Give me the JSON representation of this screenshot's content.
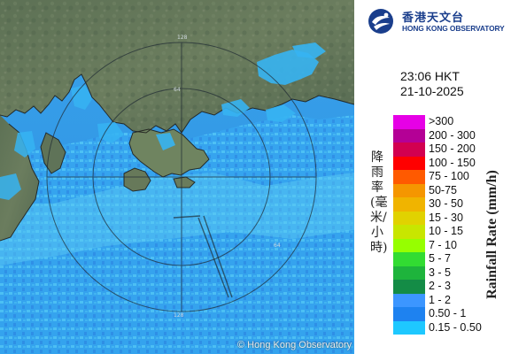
{
  "map": {
    "copyright": "© Hong Kong Observatory",
    "sea_color": "#1f8fe8",
    "land_color": "#62785a",
    "range_labels": [
      "64",
      "128",
      "64",
      "128"
    ]
  },
  "logo": {
    "name_zh": "香港天文台",
    "name_en": "HONG KONG OBSERVATORY",
    "icon": "hko-logo-icon",
    "brand_color": "#1a3e8c"
  },
  "timestamp": {
    "time": "23:06 HKT",
    "date": "21-10-2025"
  },
  "legend": {
    "title_zh": "降雨率(毫米/小時)",
    "title_en": "Rainfall Rate (mm/h)",
    "items": [
      {
        "label": ">300",
        "color": "#e600e6"
      },
      {
        "label": "200 - 300",
        "color": "#b40096"
      },
      {
        "label": "150 - 200",
        "color": "#d20050"
      },
      {
        "label": "100 - 150",
        "color": "#ff0000"
      },
      {
        "label": "75 - 100",
        "color": "#ff5a00"
      },
      {
        "label": "50-75",
        "color": "#f59600"
      },
      {
        "label": "30 - 50",
        "color": "#f0b400"
      },
      {
        "label": "15 - 30",
        "color": "#e1d200"
      },
      {
        "label": "10 - 15",
        "color": "#c8e600"
      },
      {
        "label": "7 - 10",
        "color": "#96ff00"
      },
      {
        "label": "5 - 7",
        "color": "#32dc32"
      },
      {
        "label": "3 - 5",
        "color": "#1eb43c"
      },
      {
        "label": "2 - 3",
        "color": "#148c46"
      },
      {
        "label": "1 - 2",
        "color": "#3c96ff"
      },
      {
        "label": "0.50 - 1",
        "color": "#1e82f0"
      },
      {
        "label": "0.15 - 0.50",
        "color": "#1ec8ff"
      }
    ]
  }
}
